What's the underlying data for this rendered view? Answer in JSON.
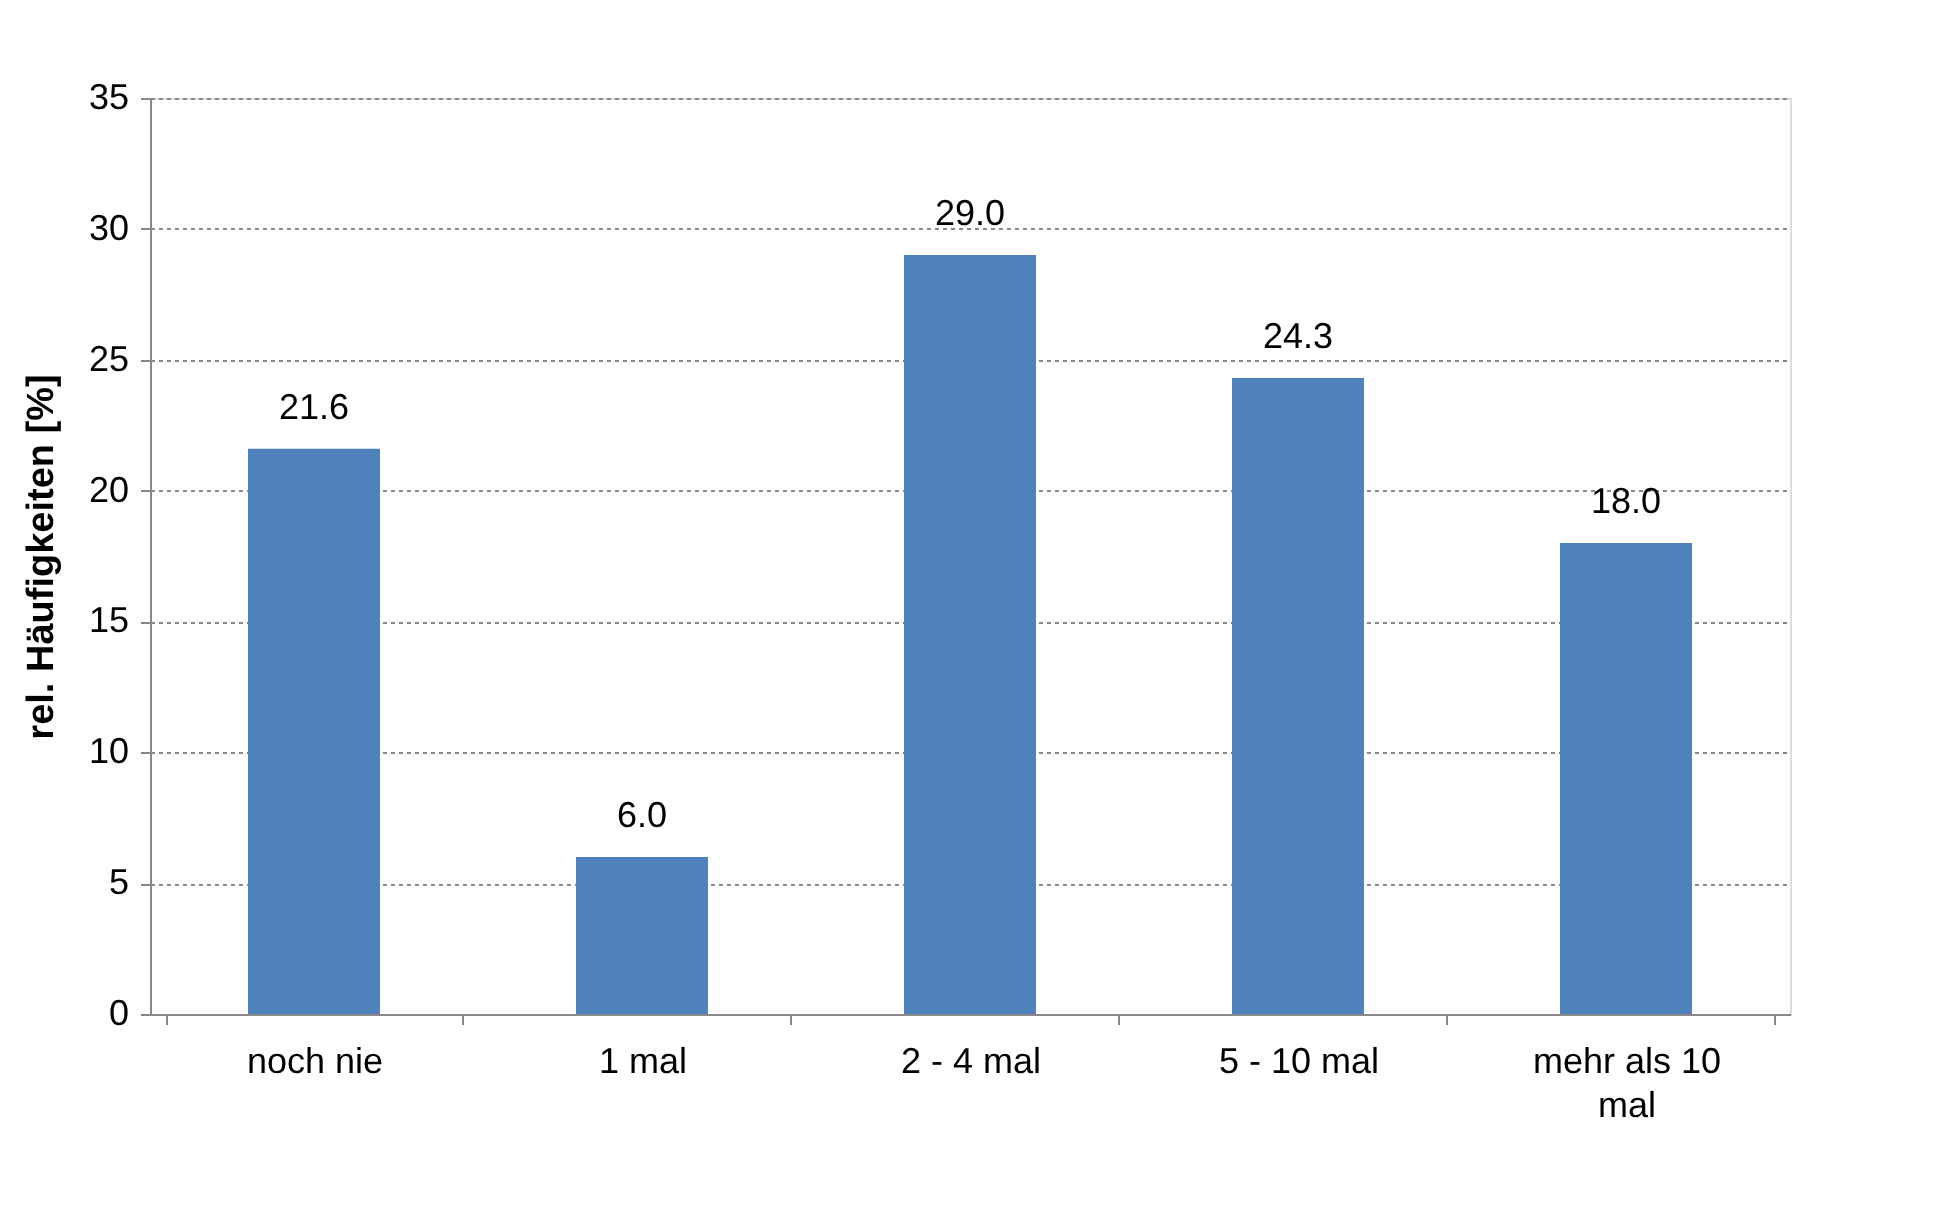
{
  "chart_data": {
    "type": "bar",
    "ylabel": "rel. Häufigkeiten [%]",
    "categories": [
      "noch nie",
      "1 mal",
      "2 - 4 mal",
      "5 - 10 mal",
      "mehr als 10 mal"
    ],
    "values": [
      21.6,
      6.0,
      29.0,
      24.3,
      18.0
    ],
    "value_labels": [
      "21.6",
      "6.0",
      "29.0",
      "24.3",
      "18.0"
    ],
    "color": "#4f81bd",
    "ylim": [
      0,
      35
    ],
    "yticks": [
      0,
      5,
      10,
      15,
      20,
      25,
      30,
      35
    ],
    "grid": "y"
  }
}
